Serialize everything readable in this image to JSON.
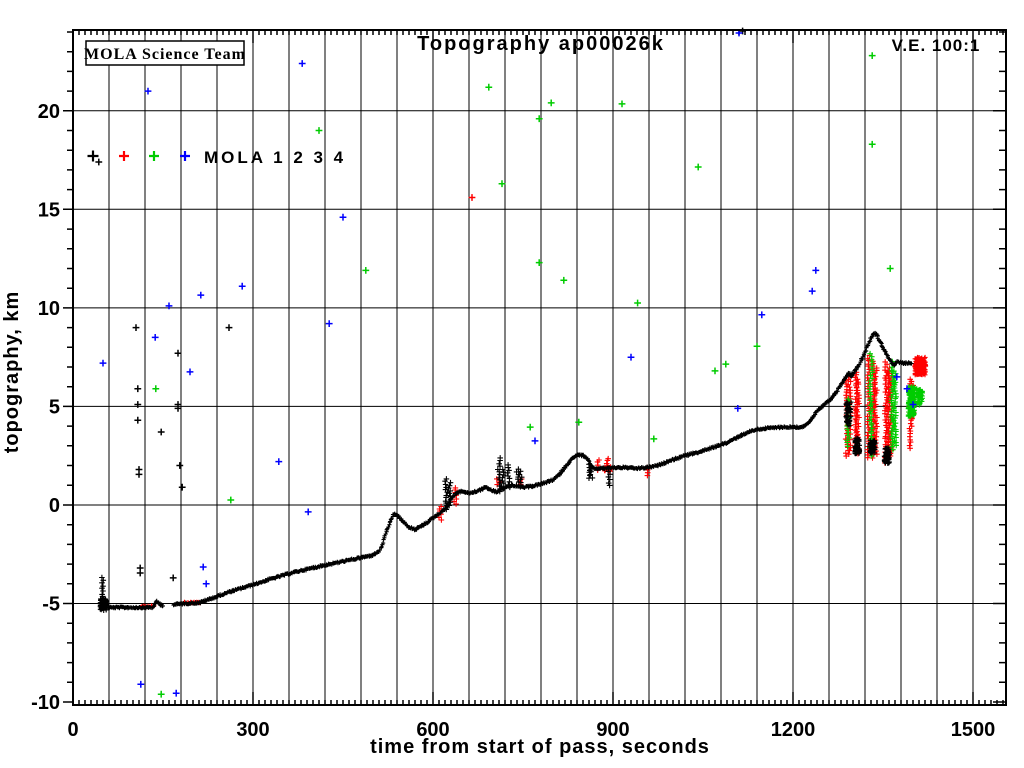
{
  "chart": {
    "title": "Topography ap00026k",
    "ve_label": "V.E. 100:1",
    "corner_label": "MOLA Science Team",
    "xlabel": "time from start of pass, seconds",
    "ylabel": "topography, km",
    "legend": {
      "label": "MOLA 1 2 3 4"
    }
  },
  "chart_data": {
    "type": "scatter",
    "title": "Topography ap00026k",
    "xlabel": "time from start of pass, seconds",
    "ylabel": "topography, km",
    "x_range": [
      0,
      1555
    ],
    "y_range": [
      -10.15,
      24.1
    ],
    "x_ticks": [
      0,
      300,
      600,
      900,
      1200,
      1500
    ],
    "y_ticks": [
      -10,
      -5,
      0,
      5,
      10,
      15,
      20
    ],
    "grid": {
      "x_step": 60,
      "y_step": 5,
      "x_minor": 10,
      "y_minor": 1
    },
    "colors": {
      "k": "#000000",
      "r": "#ff0000",
      "g": "#00cc00",
      "b": "#0000ff"
    },
    "legend_series": [
      "MOLA 1",
      "MOLA 2",
      "MOLA 3",
      "MOLA 4"
    ],
    "legend_colors": [
      "k",
      "r",
      "g",
      "b"
    ],
    "track_profile": [
      [
        45,
        -5.0
      ],
      [
        48,
        -5.15
      ],
      [
        60,
        -5.2
      ],
      [
        100,
        -5.2
      ],
      [
        133,
        -5.2
      ],
      [
        140,
        -4.9
      ],
      [
        146,
        -5.05
      ],
      [
        150,
        -5.1
      ],
      [
        168,
        -5.05
      ],
      [
        185,
        -5.0
      ],
      [
        212,
        -4.95
      ],
      [
        230,
        -4.75
      ],
      [
        262,
        -4.4
      ],
      [
        300,
        -4.05
      ],
      [
        330,
        -3.75
      ],
      [
        370,
        -3.4
      ],
      [
        420,
        -3.05
      ],
      [
        460,
        -2.8
      ],
      [
        500,
        -2.55
      ],
      [
        512,
        -2.3
      ],
      [
        520,
        -1.6
      ],
      [
        528,
        -0.9
      ],
      [
        535,
        -0.45
      ],
      [
        543,
        -0.6
      ],
      [
        558,
        -1.1
      ],
      [
        570,
        -1.25
      ],
      [
        585,
        -1.0
      ],
      [
        600,
        -0.65
      ],
      [
        614,
        -0.35
      ],
      [
        622,
        -0.15
      ],
      [
        630,
        0.3
      ],
      [
        638,
        0.6
      ],
      [
        648,
        0.7
      ],
      [
        658,
        0.6
      ],
      [
        668,
        0.65
      ],
      [
        678,
        0.75
      ],
      [
        688,
        0.9
      ],
      [
        697,
        0.75
      ],
      [
        706,
        0.65
      ],
      [
        714,
        0.8
      ],
      [
        722,
        0.9
      ],
      [
        731,
        1.0
      ],
      [
        740,
        0.95
      ],
      [
        752,
        0.9
      ],
      [
        765,
        0.95
      ],
      [
        778,
        1.05
      ],
      [
        790,
        1.15
      ],
      [
        802,
        1.3
      ],
      [
        812,
        1.6
      ],
      [
        822,
        2.0
      ],
      [
        832,
        2.35
      ],
      [
        842,
        2.55
      ],
      [
        850,
        2.5
      ],
      [
        858,
        2.3
      ],
      [
        862,
        2.05
      ],
      [
        868,
        1.85
      ],
      [
        880,
        1.85
      ],
      [
        900,
        1.9
      ],
      [
        920,
        1.9
      ],
      [
        940,
        1.85
      ],
      [
        958,
        1.9
      ],
      [
        975,
        2.0
      ],
      [
        995,
        2.25
      ],
      [
        1020,
        2.5
      ],
      [
        1045,
        2.7
      ],
      [
        1070,
        2.95
      ],
      [
        1090,
        3.15
      ],
      [
        1108,
        3.45
      ],
      [
        1125,
        3.7
      ],
      [
        1142,
        3.85
      ],
      [
        1160,
        3.9
      ],
      [
        1180,
        3.95
      ],
      [
        1200,
        3.95
      ],
      [
        1215,
        3.95
      ],
      [
        1228,
        4.2
      ],
      [
        1240,
        4.75
      ],
      [
        1252,
        5.1
      ],
      [
        1262,
        5.35
      ],
      [
        1272,
        5.7
      ],
      [
        1281,
        6.15
      ],
      [
        1288,
        6.5
      ],
      [
        1293,
        6.7
      ],
      [
        1297,
        6.55
      ],
      [
        1302,
        6.75
      ],
      [
        1310,
        7.1
      ],
      [
        1318,
        7.6
      ],
      [
        1326,
        8.2
      ],
      [
        1332,
        8.6
      ],
      [
        1336,
        8.75
      ],
      [
        1340,
        8.6
      ],
      [
        1345,
        8.3
      ],
      [
        1350,
        8.0
      ],
      [
        1355,
        7.7
      ],
      [
        1362,
        7.3
      ],
      [
        1368,
        7.1
      ],
      [
        1374,
        7.25
      ],
      [
        1380,
        7.2
      ],
      [
        1390,
        7.2
      ],
      [
        1398,
        7.2
      ]
    ],
    "track_gaps": [
      [
        151,
        168
      ]
    ],
    "red_track_segments": [
      [
        112,
        135,
        -5.15
      ],
      [
        185,
        213,
        -4.95
      ]
    ],
    "columns": {
      "k": [
        [
          50,
          -5.35,
          -3.6
        ],
        [
          622,
          -0.2,
          1.45
        ],
        [
          627,
          0,
          1.2
        ],
        [
          710,
          0.7,
          2.4
        ],
        [
          716,
          0.8,
          1.8
        ],
        [
          726,
          0.9,
          2.15
        ],
        [
          741,
          1.0,
          1.9
        ],
        [
          746,
          1.0,
          1.7
        ],
        [
          860,
          1.35,
          2.1
        ],
        [
          864,
          1.4,
          2.0
        ],
        [
          893,
          1.0,
          1.9
        ]
      ],
      "r": [
        [
          612,
          -0.75,
          0
        ],
        [
          637,
          0.05,
          0.95
        ],
        [
          708,
          1.05,
          1.45
        ],
        [
          747,
          1.05,
          1.35
        ],
        [
          875,
          1.75,
          2.35
        ],
        [
          890,
          1.95,
          2.4
        ],
        [
          958,
          1.5,
          1.95
        ],
        [
          1290,
          2.5,
          6.4
        ],
        [
          1294,
          2.6,
          6.6
        ],
        [
          1305,
          2.7,
          6.8
        ],
        [
          1308,
          2.6,
          6.5
        ],
        [
          1326,
          2.4,
          7.6
        ],
        [
          1334,
          2.4,
          7.4
        ],
        [
          1338,
          2.6,
          7.0
        ],
        [
          1355,
          2.1,
          7.4
        ],
        [
          1360,
          2.2,
          7.0
        ],
        [
          1363,
          2.5,
          6.6
        ],
        [
          1396,
          2.9,
          6.4
        ],
        [
          1399,
          4.4,
          6.2
        ]
      ],
      "g": [
        [
          1292,
          3.0,
          5.5
        ],
        [
          1330,
          2.5,
          7.8
        ],
        [
          1366,
          2.8,
          7.4
        ],
        [
          1370,
          3.0,
          6.8
        ],
        [
          1410,
          5.1,
          5.9
        ]
      ]
    },
    "blobs": [
      [
        45,
        56,
        -5.35,
        -4.75,
        "k",
        70
      ],
      [
        1288,
        1297,
        4.0,
        5.3,
        "k",
        45
      ],
      [
        1303,
        1311,
        2.6,
        3.4,
        "k",
        55
      ],
      [
        1328,
        1337,
        2.6,
        3.3,
        "k",
        55
      ],
      [
        1352,
        1361,
        2.1,
        2.9,
        "k",
        55
      ],
      [
        884,
        896,
        1.7,
        1.95,
        "r",
        30
      ],
      [
        1403,
        1421,
        6.6,
        7.5,
        "r",
        170
      ],
      [
        1392,
        1403,
        4.5,
        6.0,
        "g",
        150
      ],
      [
        1406,
        1416,
        5.1,
        5.9,
        "g",
        40
      ]
    ],
    "outliers": {
      "k": [
        [
          43,
          17.4
        ],
        [
          105,
          9.0
        ],
        [
          108,
          5.9
        ],
        [
          108,
          5.1
        ],
        [
          108,
          4.3
        ],
        [
          110,
          1.8
        ],
        [
          110,
          1.55
        ],
        [
          112,
          -3.2
        ],
        [
          112,
          -3.45
        ],
        [
          147,
          3.7
        ],
        [
          167,
          -3.7
        ],
        [
          175,
          7.7
        ],
        [
          175,
          5.1
        ],
        [
          175,
          4.9
        ],
        [
          178,
          2.0
        ],
        [
          182,
          0.9
        ],
        [
          260,
          9.0
        ],
        [
          1116,
          24.05
        ]
      ],
      "r": [
        [
          665,
          15.6
        ]
      ],
      "g": [
        [
          138,
          5.9
        ],
        [
          147,
          -9.6
        ],
        [
          263,
          0.25
        ],
        [
          410,
          19.0
        ],
        [
          488,
          11.9
        ],
        [
          693,
          21.2
        ],
        [
          715,
          16.3
        ],
        [
          762,
          3.95
        ],
        [
          777,
          19.6
        ],
        [
          777,
          12.3
        ],
        [
          797,
          20.4
        ],
        [
          818,
          11.4
        ],
        [
          843,
          4.2
        ],
        [
          915,
          20.35
        ],
        [
          941,
          10.25
        ],
        [
          968,
          3.35
        ],
        [
          1042,
          17.15
        ],
        [
          1070,
          6.8
        ],
        [
          1088,
          7.15
        ],
        [
          1140,
          8.05
        ],
        [
          1332,
          22.8
        ],
        [
          1332,
          18.3
        ],
        [
          1362,
          12.0
        ]
      ],
      "b": [
        [
          50,
          7.2
        ],
        [
          113,
          -9.1
        ],
        [
          125,
          21.0
        ],
        [
          137,
          8.5
        ],
        [
          160,
          10.1
        ],
        [
          172,
          -9.55
        ],
        [
          195,
          6.75
        ],
        [
          213,
          10.65
        ],
        [
          217,
          -3.15
        ],
        [
          222,
          -4.0
        ],
        [
          282,
          11.1
        ],
        [
          343,
          2.2
        ],
        [
          382,
          22.4
        ],
        [
          392,
          -0.35
        ],
        [
          427,
          9.2
        ],
        [
          450,
          14.6
        ],
        [
          770,
          3.25
        ],
        [
          930,
          7.5
        ],
        [
          1108,
          4.9
        ],
        [
          1110,
          23.95
        ],
        [
          1148,
          9.65
        ],
        [
          1232,
          10.85
        ],
        [
          1238,
          11.9
        ],
        [
          1373,
          6.5
        ],
        [
          1390,
          5.9
        ],
        [
          1400,
          5.1
        ]
      ]
    }
  }
}
